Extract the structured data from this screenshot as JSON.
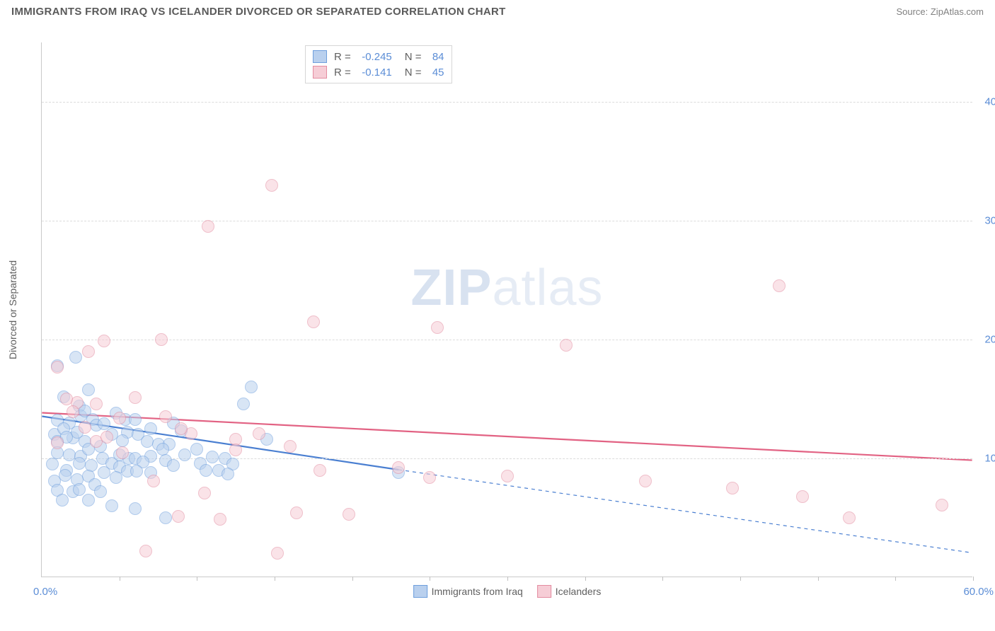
{
  "title": "IMMIGRANTS FROM IRAQ VS ICELANDER DIVORCED OR SEPARATED CORRELATION CHART",
  "source_prefix": "Source: ",
  "source_name": "ZipAtlas.com",
  "ylabel": "Divorced or Separated",
  "watermark_bold": "ZIP",
  "watermark_light": "atlas",
  "chart": {
    "type": "scatter",
    "xlim": [
      0,
      60
    ],
    "ylim": [
      0,
      45
    ],
    "x_origin_label": "0.0%",
    "x_max_label": "60.0%",
    "y_ticks": [
      10,
      20,
      30,
      40
    ],
    "y_tick_labels": [
      "10.0%",
      "20.0%",
      "30.0%",
      "40.0%"
    ],
    "x_ticks": [
      5,
      10,
      15,
      20,
      25,
      30,
      35,
      40,
      45,
      50,
      55,
      60
    ],
    "grid_color": "#dcdcdc",
    "axis_color": "#c9c9c9",
    "tick_font_color": "#5b8dd6",
    "tick_fontsize": 15,
    "label_fontsize": 14,
    "marker_size": 18,
    "series": [
      {
        "name": "Immigrants from Iraq",
        "fill": "#b9d0ee",
        "stroke": "#6f9fdd",
        "R": "-0.245",
        "N": "84",
        "trend": {
          "x1": 0,
          "y1": 13.5,
          "x2": 23,
          "y2": 9.0,
          "dash_x2": 60,
          "dash_y2": 2.0,
          "width": 2.2,
          "color": "#4a7fd1"
        },
        "points": [
          [
            1.0,
            17.8
          ],
          [
            1.4,
            15.2
          ],
          [
            2.2,
            18.5
          ],
          [
            2.4,
            14.4
          ],
          [
            2.5,
            13.6
          ],
          [
            1.0,
            13.2
          ],
          [
            1.8,
            13.0
          ],
          [
            2.8,
            14.0
          ],
          [
            3.0,
            15.8
          ],
          [
            3.3,
            13.3
          ],
          [
            0.8,
            12.0
          ],
          [
            1.4,
            12.5
          ],
          [
            2.0,
            11.7
          ],
          [
            2.3,
            12.2
          ],
          [
            1.0,
            11.4
          ],
          [
            1.6,
            11.8
          ],
          [
            2.8,
            11.4
          ],
          [
            3.5,
            12.8
          ],
          [
            4.0,
            12.9
          ],
          [
            4.8,
            13.8
          ],
          [
            5.4,
            13.3
          ],
          [
            6.0,
            13.3
          ],
          [
            5.5,
            12.2
          ],
          [
            4.5,
            12.0
          ],
          [
            3.8,
            11.0
          ],
          [
            5.2,
            11.5
          ],
          [
            6.2,
            12.0
          ],
          [
            7.0,
            12.5
          ],
          [
            6.8,
            11.4
          ],
          [
            7.5,
            11.2
          ],
          [
            8.5,
            13.0
          ],
          [
            9.0,
            12.3
          ],
          [
            8.2,
            11.2
          ],
          [
            1.0,
            10.5
          ],
          [
            1.8,
            10.3
          ],
          [
            2.5,
            10.2
          ],
          [
            0.7,
            9.5
          ],
          [
            1.6,
            9.0
          ],
          [
            2.4,
            9.6
          ],
          [
            3.0,
            10.8
          ],
          [
            3.9,
            10.0
          ],
          [
            3.2,
            9.4
          ],
          [
            4.5,
            9.6
          ],
          [
            5.0,
            10.3
          ],
          [
            5.6,
            10.0
          ],
          [
            6.0,
            10.0
          ],
          [
            7.0,
            10.2
          ],
          [
            7.8,
            10.8
          ],
          [
            6.5,
            9.7
          ],
          [
            5.0,
            9.3
          ],
          [
            4.0,
            8.8
          ],
          [
            3.0,
            8.5
          ],
          [
            2.3,
            8.2
          ],
          [
            1.5,
            8.6
          ],
          [
            0.8,
            8.1
          ],
          [
            1.0,
            7.3
          ],
          [
            2.0,
            7.2
          ],
          [
            2.4,
            7.4
          ],
          [
            3.4,
            7.8
          ],
          [
            3.8,
            7.2
          ],
          [
            4.8,
            8.4
          ],
          [
            5.5,
            8.9
          ],
          [
            6.1,
            8.9
          ],
          [
            7.0,
            8.8
          ],
          [
            8.0,
            9.8
          ],
          [
            8.5,
            9.4
          ],
          [
            9.2,
            10.3
          ],
          [
            10.0,
            10.8
          ],
          [
            10.2,
            9.6
          ],
          [
            10.6,
            9.0
          ],
          [
            11.0,
            10.1
          ],
          [
            11.8,
            10.0
          ],
          [
            12.3,
            9.5
          ],
          [
            11.4,
            9.0
          ],
          [
            12.0,
            8.7
          ],
          [
            13.0,
            14.6
          ],
          [
            13.5,
            16.0
          ],
          [
            14.5,
            11.6
          ],
          [
            3.0,
            6.5
          ],
          [
            1.3,
            6.5
          ],
          [
            4.5,
            6.0
          ],
          [
            6.0,
            5.8
          ],
          [
            8.0,
            5.0
          ],
          [
            23.0,
            8.8
          ]
        ]
      },
      {
        "name": "Icelanders",
        "fill": "#f6cdd6",
        "stroke": "#e38ca0",
        "R": "-0.141",
        "N": "45",
        "trend": {
          "x1": 0,
          "y1": 13.8,
          "x2": 60,
          "y2": 9.8,
          "width": 2.2,
          "color": "#e26283"
        },
        "points": [
          [
            1.0,
            17.7
          ],
          [
            2.3,
            14.7
          ],
          [
            3.0,
            19.0
          ],
          [
            4.0,
            19.9
          ],
          [
            10.7,
            29.5
          ],
          [
            14.8,
            33.0
          ],
          [
            7.7,
            20.0
          ],
          [
            17.5,
            21.5
          ],
          [
            25.5,
            21.0
          ],
          [
            33.8,
            19.5
          ],
          [
            47.5,
            24.5
          ],
          [
            1.6,
            15.0
          ],
          [
            2.0,
            13.9
          ],
          [
            3.5,
            14.6
          ],
          [
            5.0,
            13.4
          ],
          [
            8.0,
            13.5
          ],
          [
            9.6,
            12.1
          ],
          [
            16.0,
            11.0
          ],
          [
            12.5,
            11.6
          ],
          [
            14.0,
            12.1
          ],
          [
            17.9,
            9.0
          ],
          [
            23.0,
            9.2
          ],
          [
            25.0,
            8.4
          ],
          [
            30.0,
            8.5
          ],
          [
            38.9,
            8.1
          ],
          [
            44.5,
            7.5
          ],
          [
            49.0,
            6.8
          ],
          [
            52.0,
            5.0
          ],
          [
            58.0,
            6.1
          ],
          [
            6.0,
            15.1
          ],
          [
            9.0,
            12.5
          ],
          [
            12.5,
            10.7
          ],
          [
            1.0,
            11.3
          ],
          [
            2.8,
            12.6
          ],
          [
            3.5,
            11.4
          ],
          [
            4.2,
            11.8
          ],
          [
            5.2,
            10.5
          ],
          [
            7.2,
            8.1
          ],
          [
            10.5,
            7.1
          ],
          [
            11.5,
            4.9
          ],
          [
            6.7,
            2.2
          ],
          [
            15.2,
            2.0
          ],
          [
            19.8,
            5.3
          ],
          [
            16.4,
            5.4
          ],
          [
            8.8,
            5.1
          ]
        ]
      }
    ]
  },
  "legend_bottom": [
    {
      "label": "Immigrants from Iraq",
      "fill": "#b9d0ee",
      "stroke": "#6f9fdd"
    },
    {
      "label": "Icelanders",
      "fill": "#f6cdd6",
      "stroke": "#e38ca0"
    }
  ]
}
